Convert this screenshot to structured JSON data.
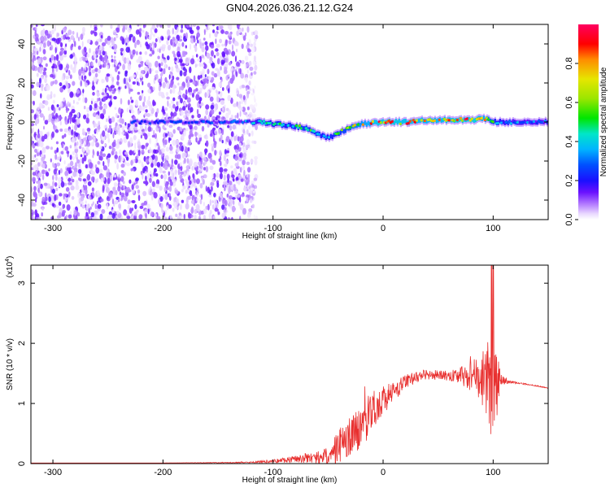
{
  "title": "GN04.2026.036.21.12.G24",
  "colors": {
    "snr_line": "#e8302f",
    "colormap": [
      "#ffffff",
      "#e9d8ff",
      "#c8a6ff",
      "#9b5cff",
      "#6a11ff",
      "#1a10ff",
      "#0050ff",
      "#00b4ff",
      "#00e6c8",
      "#00e600",
      "#9be600",
      "#e6e600",
      "#ff8c00",
      "#ff0000",
      "#ff0060"
    ]
  },
  "chart_data": [
    {
      "type": "heatmap",
      "name": "spectrogram",
      "xlabel": "Height of straight line (km)",
      "ylabel": "Frequency (Hz)",
      "xlim": [
        -320,
        150
      ],
      "ylim": [
        -50,
        50
      ],
      "xticks": [
        -300,
        -200,
        -100,
        0,
        100
      ],
      "yticks": [
        -40,
        -20,
        0,
        20,
        40
      ],
      "xtick_labels": [
        "-300",
        "-200",
        "-100",
        "0",
        "100"
      ],
      "ytick_labels": [
        "-40",
        "-20",
        "0",
        "20",
        "40"
      ],
      "colorbar": {
        "label": "Normalized spectral amplitude",
        "range": [
          0,
          1
        ],
        "ticks": [
          0,
          0.2,
          0.4,
          0.6,
          0.8
        ],
        "tick_labels": [
          "0.0",
          "0.2",
          "0.4",
          "0.6",
          "0.8"
        ]
      },
      "noise_region_x": [
        -320,
        -115
      ],
      "ridge": {
        "x": [
          -230,
          -200,
          -160,
          -130,
          -115,
          -100,
          -85,
          -70,
          -60,
          -52,
          -45,
          -35,
          -20,
          0,
          20,
          40,
          60,
          80,
          90,
          95,
          100,
          105,
          110,
          120,
          150
        ],
        "frequency": [
          0,
          0,
          0,
          0,
          0,
          -1,
          -2,
          -3,
          -6,
          -8,
          -7,
          -4,
          -1,
          0,
          0,
          1,
          1,
          1,
          2,
          1,
          0,
          0,
          0,
          0,
          0
        ],
        "amplitude": [
          0.25,
          0.25,
          0.28,
          0.3,
          0.4,
          0.45,
          0.5,
          0.55,
          0.5,
          0.45,
          0.5,
          0.6,
          0.75,
          0.9,
          0.85,
          0.8,
          0.85,
          0.9,
          0.8,
          0.7,
          0.5,
          0.45,
          0.4,
          0.35,
          0.3
        ]
      }
    },
    {
      "type": "line",
      "name": "snr",
      "xlabel": "Height of straight line (km)",
      "ylabel": "SNR (10 * v/v)",
      "exponent_label": "(x10",
      "exponent_power": "4",
      "exponent_close": ")",
      "xlim": [
        -320,
        150
      ],
      "ylim": [
        0,
        3.3
      ],
      "xticks": [
        -300,
        -200,
        -100,
        0,
        100
      ],
      "yticks": [
        0,
        1,
        2,
        3
      ],
      "xtick_labels": [
        "-300",
        "-200",
        "-100",
        "0",
        "100"
      ],
      "ytick_labels": [
        "0",
        "1",
        "2",
        "3"
      ],
      "series": [
        {
          "name": "SNR",
          "x": [
            -320,
            -200,
            -120,
            -100,
            -80,
            -60,
            -50,
            -40,
            -30,
            -20,
            -10,
            0,
            10,
            20,
            30,
            40,
            50,
            60,
            70,
            80,
            90,
            95,
            100,
            105,
            108,
            115,
            130,
            150
          ],
          "y": [
            0.01,
            0.01,
            0.02,
            0.04,
            0.08,
            0.1,
            0.12,
            0.3,
            0.45,
            0.62,
            0.85,
            1.05,
            1.2,
            1.35,
            1.45,
            1.48,
            1.47,
            1.46,
            1.46,
            1.45,
            1.4,
            1.5,
            1.25,
            1.3,
            1.36,
            1.36,
            1.32,
            1.26
          ],
          "noise_envelope": [
            0,
            0,
            0.01,
            0.03,
            0.06,
            0.1,
            0.15,
            0.3,
            0.35,
            0.35,
            0.35,
            0.25,
            0.18,
            0.12,
            0.1,
            0.08,
            0.08,
            0.08,
            0.15,
            0.25,
            0.45,
            0.8,
            1.0,
            0.5,
            0.1,
            0.02,
            0.01,
            0.01
          ]
        }
      ]
    }
  ]
}
